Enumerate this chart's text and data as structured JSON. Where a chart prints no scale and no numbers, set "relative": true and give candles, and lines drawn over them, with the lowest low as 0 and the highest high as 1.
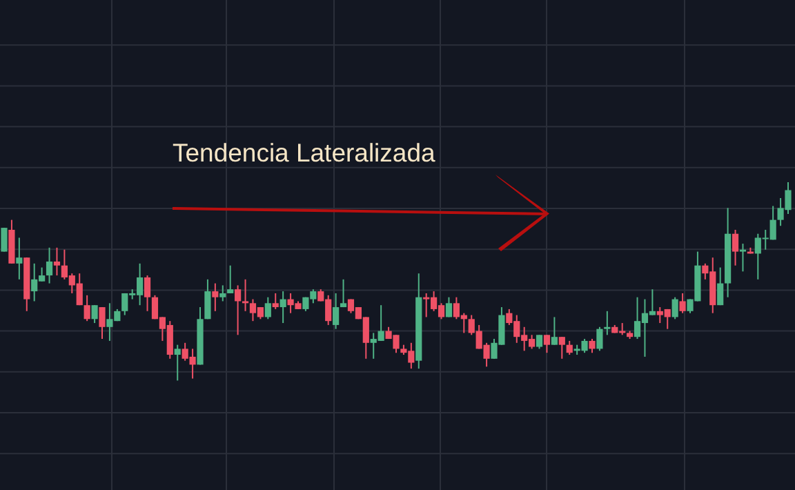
{
  "chart_data": {
    "type": "candlestick",
    "relative": true,
    "grid": true,
    "annotations": [
      "Tendencia Lateralizada"
    ],
    "categories": [
      null,
      null,
      null,
      null,
      null,
      null,
      null,
      null,
      null,
      null,
      null,
      null,
      null,
      null,
      null,
      null,
      null,
      null,
      null,
      null,
      null,
      null,
      null,
      null,
      null,
      null,
      null,
      null,
      null,
      null,
      null,
      null,
      null,
      null,
      null,
      null,
      null,
      null,
      null,
      null,
      null,
      null,
      null,
      null,
      null,
      null,
      null,
      null,
      null,
      null,
      null,
      null,
      null,
      null,
      null,
      null,
      null,
      null,
      null,
      null,
      null,
      null,
      null,
      null,
      null,
      null,
      null,
      null,
      null,
      null,
      null,
      null,
      null,
      null,
      null,
      null,
      null,
      null,
      null,
      null,
      null,
      null,
      null,
      null,
      null,
      null,
      null,
      null,
      null,
      null,
      null,
      null,
      null,
      null,
      null,
      null,
      null,
      null,
      null,
      null,
      null,
      null,
      null,
      null,
      null
    ],
    "ohlc": [
      [
        0.65,
        0.77,
        0.65,
        0.77
      ],
      [
        0.76,
        0.81,
        0.59,
        0.59
      ],
      [
        0.59,
        0.72,
        0.51,
        0.62
      ],
      [
        0.62,
        0.62,
        0.35,
        0.41
      ],
      [
        0.45,
        0.59,
        0.4,
        0.51
      ],
      [
        0.5,
        0.57,
        0.5,
        0.53
      ],
      [
        0.53,
        0.67,
        0.49,
        0.6
      ],
      [
        0.6,
        0.67,
        0.53,
        0.58
      ],
      [
        0.58,
        0.66,
        0.51,
        0.52
      ],
      [
        0.53,
        0.54,
        0.44,
        0.48
      ],
      [
        0.49,
        0.54,
        0.38,
        0.38
      ],
      [
        0.38,
        0.43,
        0.3,
        0.31
      ],
      [
        0.31,
        0.38,
        0.29,
        0.38
      ],
      [
        0.37,
        0.37,
        0.21,
        0.27
      ],
      [
        0.27,
        0.39,
        0.2,
        0.31
      ],
      [
        0.3,
        0.36,
        0.3,
        0.35
      ],
      [
        0.35,
        0.44,
        0.33,
        0.44
      ],
      [
        0.43,
        0.46,
        0.41,
        0.44
      ],
      [
        0.43,
        0.59,
        0.38,
        0.52
      ],
      [
        0.52,
        0.53,
        0.35,
        0.42
      ],
      [
        0.42,
        0.43,
        0.31,
        0.31
      ],
      [
        0.32,
        0.32,
        0.2,
        0.26
      ],
      [
        0.28,
        0.3,
        0.11,
        0.13
      ],
      [
        0.13,
        0.18,
        0,
        0.16
      ],
      [
        0.16,
        0.19,
        0.1,
        0.11
      ],
      [
        0.12,
        0.16,
        0.01,
        0.08
      ],
      [
        0.08,
        0.37,
        0.08,
        0.31
      ],
      [
        0.31,
        0.51,
        0.31,
        0.45
      ],
      [
        0.45,
        0.49,
        0.35,
        0.42
      ],
      [
        0.42,
        0.48,
        0.4,
        0.44
      ],
      [
        0.44,
        0.58,
        0.44,
        0.46
      ],
      [
        0.46,
        0.48,
        0.23,
        0.4
      ],
      [
        0.4,
        0.51,
        0.35,
        0.39
      ],
      [
        0.39,
        0.41,
        0.3,
        0.34
      ],
      [
        0.37,
        0.37,
        0.31,
        0.32
      ],
      [
        0.32,
        0.42,
        0.31,
        0.39
      ],
      [
        0.39,
        0.44,
        0.36,
        0.37
      ],
      [
        0.37,
        0.45,
        0.29,
        0.41
      ],
      [
        0.41,
        0.44,
        0.34,
        0.38
      ],
      [
        0.39,
        0.4,
        0.36,
        0.36
      ],
      [
        0.36,
        0.42,
        0.35,
        0.42
      ],
      [
        0.41,
        0.46,
        0.39,
        0.45
      ],
      [
        0.45,
        0.46,
        0.4,
        0.4
      ],
      [
        0.41,
        0.43,
        0.28,
        0.3
      ],
      [
        0.28,
        0.44,
        0.26,
        0.37
      ],
      [
        0.37,
        0.51,
        0.37,
        0.39
      ],
      [
        0.41,
        0.41,
        0.34,
        0.35
      ],
      [
        0.37,
        0.37,
        0.31,
        0.31
      ],
      [
        0.32,
        0.32,
        0.11,
        0.19
      ],
      [
        0.19,
        0.24,
        0.11,
        0.21
      ],
      [
        0.2,
        0.38,
        0.2,
        0.25
      ],
      [
        0.25,
        0.27,
        0.21,
        0.21
      ],
      [
        0.23,
        0.23,
        0.14,
        0.16
      ],
      [
        0.16,
        0.18,
        0.13,
        0.14
      ],
      [
        0.15,
        0.19,
        0.06,
        0.09
      ],
      [
        0.1,
        0.54,
        0.06,
        0.42
      ],
      [
        0.42,
        0.44,
        0.32,
        0.41
      ],
      [
        0.42,
        0.45,
        0.35,
        0.36
      ],
      [
        0.38,
        0.39,
        0.31,
        0.32
      ],
      [
        0.32,
        0.42,
        0.32,
        0.39
      ],
      [
        0.39,
        0.42,
        0.31,
        0.32
      ],
      [
        0.33,
        0.34,
        0.24,
        0.31
      ],
      [
        0.31,
        0.33,
        0.23,
        0.24
      ],
      [
        0.25,
        0.28,
        0.16,
        0.16
      ],
      [
        0.18,
        0.19,
        0.07,
        0.11
      ],
      [
        0.11,
        0.21,
        0.11,
        0.19
      ],
      [
        0.18,
        0.37,
        0.18,
        0.33
      ],
      [
        0.34,
        0.36,
        0.28,
        0.29
      ],
      [
        0.3,
        0.33,
        0.19,
        0.22
      ],
      [
        0.23,
        0.27,
        0.15,
        0.2
      ],
      [
        0.21,
        0.23,
        0.16,
        0.17
      ],
      [
        0.17,
        0.23,
        0.16,
        0.23
      ],
      [
        0.23,
        0.23,
        0.14,
        0.18
      ],
      [
        0.18,
        0.32,
        0.18,
        0.22
      ],
      [
        0.22,
        0.22,
        0.11,
        0.18
      ],
      [
        0.18,
        0.2,
        0.13,
        0.14
      ],
      [
        0.15,
        0.18,
        0.13,
        0.16
      ],
      [
        0.15,
        0.21,
        0.14,
        0.2
      ],
      [
        0.2,
        0.21,
        0.14,
        0.16
      ],
      [
        0.16,
        0.27,
        0.15,
        0.26
      ],
      [
        0.26,
        0.35,
        0.23,
        0.27
      ],
      [
        0.27,
        0.28,
        0.24,
        0.24
      ],
      [
        0.25,
        0.29,
        0.23,
        0.24
      ],
      [
        0.24,
        0.25,
        0.21,
        0.22
      ],
      [
        0.22,
        0.42,
        0.21,
        0.3
      ],
      [
        0.29,
        0.41,
        0.12,
        0.34
      ],
      [
        0.33,
        0.46,
        0.33,
        0.35
      ],
      [
        0.35,
        0.37,
        0.29,
        0.33
      ],
      [
        0.36,
        0.36,
        0.26,
        0.32
      ],
      [
        0.32,
        0.42,
        0.31,
        0.41
      ],
      [
        0.4,
        0.44,
        0.34,
        0.35
      ],
      [
        0.35,
        0.41,
        0.34,
        0.41
      ],
      [
        0.4,
        0.65,
        0.4,
        0.58
      ],
      [
        0.58,
        0.59,
        0.51,
        0.54
      ],
      [
        0.55,
        0.62,
        0.34,
        0.38
      ],
      [
        0.38,
        0.57,
        0.38,
        0.49
      ],
      [
        0.49,
        0.87,
        0.42,
        0.74
      ],
      [
        0.74,
        0.76,
        0.58,
        0.65
      ],
      [
        0.65,
        0.69,
        0.55,
        0.66
      ],
      [
        0.65,
        0.67,
        0.64,
        0.64
      ],
      [
        0.64,
        0.74,
        0.51,
        0.72
      ],
      [
        0.72,
        0.76,
        0.66,
        0.72
      ],
      [
        0.71,
        0.88,
        0.71,
        0.81
      ],
      [
        0.81,
        0.92,
        0.78,
        0.87
      ],
      [
        0.86,
        1,
        0.84,
        0.96
      ]
    ]
  }
}
